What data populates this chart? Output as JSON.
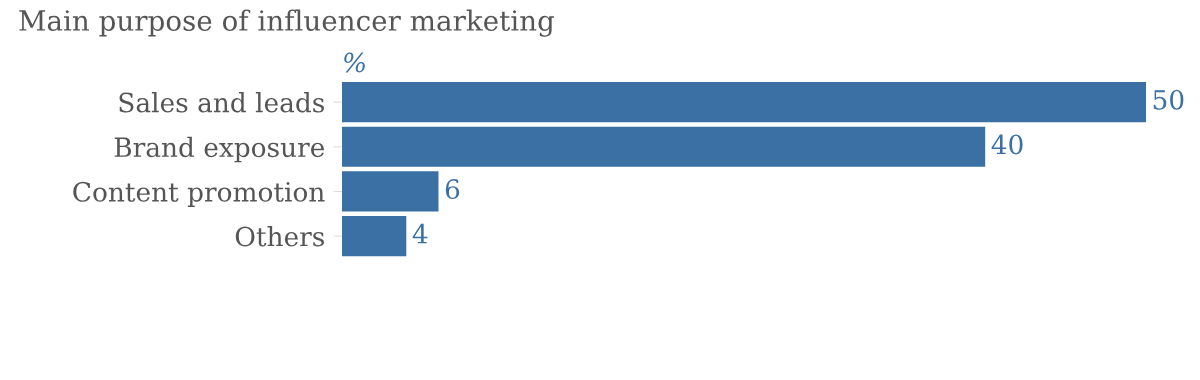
{
  "chart_data": {
    "type": "bar",
    "orientation": "horizontal",
    "title": "Main purpose of influencer marketing",
    "xlabel": "%",
    "categories": [
      "Sales and leads",
      "Brand exposure",
      "Content promotion",
      "Others"
    ],
    "values": [
      50,
      40,
      6,
      4
    ],
    "color": "#3a70a4",
    "data_labels": true,
    "tick_labels": "y",
    "grid": false,
    "legend": false
  }
}
